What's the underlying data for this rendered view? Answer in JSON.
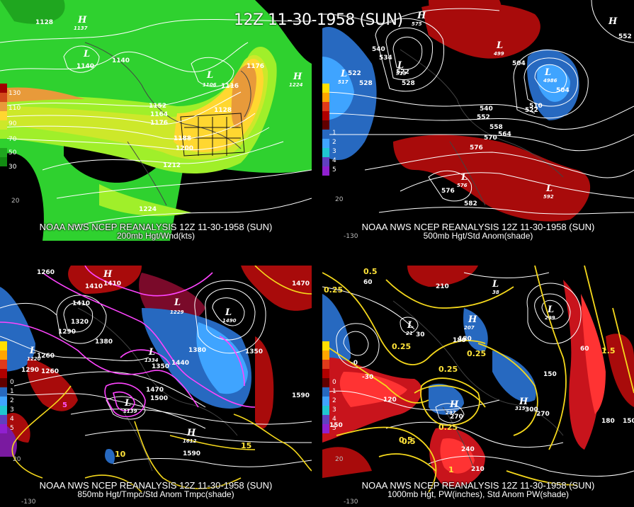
{
  "title": "12Z 11-30-1958 (SUN)",
  "panels": [
    {
      "id": "tl",
      "caption1": "NOAA NWS NCEP REANALYSIS 12Z 11-30-1958 (SUN)",
      "caption2": "200mb Hgt/Wnd(kts)",
      "legend": [
        "130",
        "110",
        "90",
        "70",
        "50",
        "30"
      ],
      "contour_labels": [
        "1128",
        "1140",
        "1140",
        "1152",
        "1164",
        "1176",
        "1188",
        "1200",
        "1212",
        "1224",
        "1116",
        "1128",
        "1176"
      ],
      "centers": [
        {
          "type": "H",
          "value": "1137"
        },
        {
          "type": "L",
          "value": ""
        },
        {
          "type": "L",
          "value": "1106"
        },
        {
          "type": "H",
          "value": "1224"
        }
      ],
      "lon_labels": [
        "20"
      ]
    },
    {
      "id": "tr",
      "caption1": "NOAA NWS NCEP REANALYSIS 12Z 11-30-1958 (SUN)",
      "caption2": "500mb Hgt/Std Anom(shade)",
      "legend": [
        "",
        "",
        "",
        "",
        "",
        "1",
        "2",
        "3",
        "4",
        "5"
      ],
      "contour_labels": [
        "540",
        "534",
        "522",
        "528",
        "522",
        "528",
        "504",
        "540",
        "552",
        "558",
        "564",
        "570",
        "576",
        "582",
        "510",
        "522",
        "504",
        "552",
        "576"
      ],
      "centers": [
        {
          "type": "H",
          "value": "575"
        },
        {
          "type": "L",
          "value": "517"
        },
        {
          "type": "L",
          "value": "513"
        },
        {
          "type": "L",
          "value": "499"
        },
        {
          "type": "L",
          "value": "4986"
        },
        {
          "type": "L",
          "value": "576"
        },
        {
          "type": "H",
          "value": ""
        },
        {
          "type": "L",
          "value": "592"
        }
      ],
      "lon_labels": [
        "20",
        "-130"
      ]
    },
    {
      "id": "bl",
      "caption1": "NOAA NWS NCEP REANALYSIS 12Z 11-30-1958 (SUN)",
      "caption2": "850mb Hgt/Tmpc/Std Anom Tmpc(shade)",
      "legend": [
        "",
        "",
        "",
        "",
        "0",
        "1",
        "2",
        "3",
        "4",
        "5"
      ],
      "contour_labels": [
        "1260",
        "1410",
        "1410",
        "1320",
        "1290",
        "1380",
        "1290",
        "1260",
        "1260",
        "1350",
        "1440",
        "1380",
        "1470",
        "1500",
        "1590",
        "1590",
        "1410",
        "1470",
        "1350",
        "10",
        "15",
        "5"
      ],
      "centers": [
        {
          "type": "H",
          "value": ""
        },
        {
          "type": "L",
          "value": "1220"
        },
        {
          "type": "L",
          "value": "1229"
        },
        {
          "type": "L",
          "value": "1334"
        },
        {
          "type": "L",
          "value": "1490"
        },
        {
          "type": "L",
          "value": "1139"
        },
        {
          "type": "H",
          "value": "1612"
        }
      ],
      "lon_labels": [
        "20",
        "-130"
      ]
    },
    {
      "id": "br",
      "caption1": "NOAA NWS NCEP REANALYSIS 12Z 11-30-1958 (SUN)",
      "caption2": "1000mb Hgt, PW(inches), Std Anom PW(shade)",
      "legend": [
        "",
        "",
        "",
        "",
        "0",
        "1",
        "2",
        "3",
        "4",
        "5"
      ],
      "contour_labels": [
        "0.5",
        "0.25",
        "210",
        "60",
        "30",
        "0.25",
        "180",
        "0.25",
        "0.25",
        "0.5",
        "270",
        "0.25",
        "150",
        "120",
        "150",
        "180",
        "240",
        "210",
        "1",
        "0.5",
        "300",
        "270",
        "150",
        "60",
        "1.5",
        "180",
        "-0",
        "-30"
      ],
      "centers": [
        {
          "type": "H",
          "value": "207"
        },
        {
          "type": "L",
          "value": "299"
        },
        {
          "type": "H",
          "value": "297"
        },
        {
          "type": "H",
          "value": "315"
        },
        {
          "type": "L",
          "value": "21"
        },
        {
          "type": "L",
          "value": "38"
        }
      ],
      "lon_labels": [
        "20",
        "-130"
      ]
    }
  ],
  "colors": {
    "wind_light": "#2fd12f",
    "wind_lime": "#a0ef2a",
    "wind_yellow": "#ffd730",
    "wind_orange": "#e89a3a",
    "anom_red": "#a80b0b",
    "anom_brightred": "#ff3333",
    "anom_blue": "#2769c0",
    "anom_lightblue": "#3fa4ff",
    "temp_magenta": "#ff44ff",
    "pw_yellow": "#f5d81c",
    "coast_gray": "#9a9a9a"
  }
}
